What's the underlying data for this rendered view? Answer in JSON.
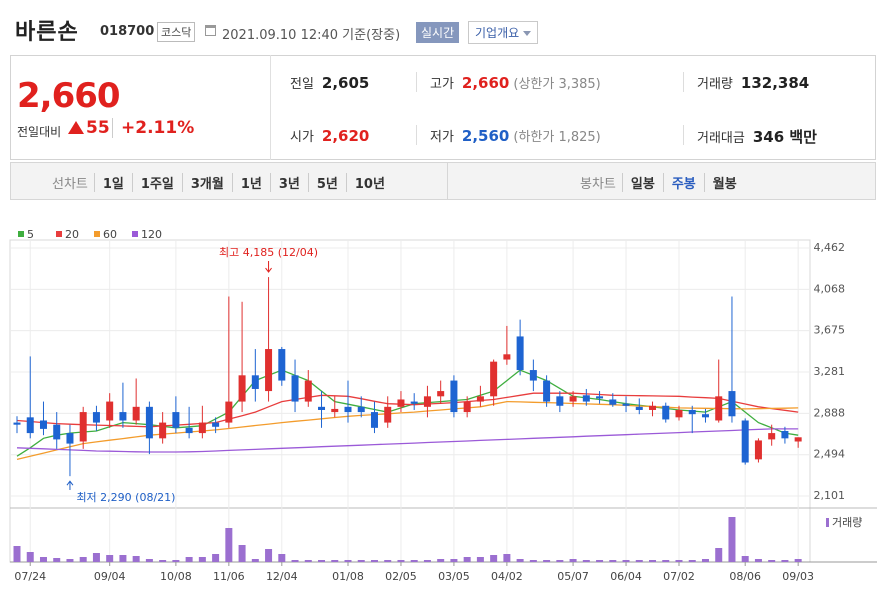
{
  "header": {
    "name": "바른손",
    "code": "018700",
    "market": "코스닥",
    "timestamp": "2021.09.10 12:40 기준(장중)",
    "realtime": "실시간",
    "overview": "기업개요"
  },
  "summary": {
    "price": "2,660",
    "change_label": "전일대비",
    "change": "55",
    "change_pct": "+2.11%",
    "items": [
      {
        "label": "전일",
        "value": "2,605",
        "color": "#222222"
      },
      {
        "label": "고가",
        "value": "2,660",
        "note": "(상한가 3,385)",
        "color": "#e0211e"
      },
      {
        "label": "거래량",
        "value": "132,384",
        "color": "#222222"
      },
      {
        "label": "시가",
        "value": "2,620",
        "color": "#e0211e"
      },
      {
        "label": "저가",
        "value": "2,560",
        "note": "(하한가 1,825)",
        "color": "#1f5fc6"
      },
      {
        "label": "거래대금",
        "value": "346 백만",
        "color": "#222222"
      }
    ]
  },
  "tabs": {
    "line_label": "선차트",
    "line": [
      "1일",
      "1주일",
      "3개월",
      "1년",
      "3년",
      "5년",
      "10년"
    ],
    "candle_label": "봉차트",
    "candle": [
      "일봉",
      "주봉",
      "월봉"
    ],
    "active": "주봉"
  },
  "chart": {
    "type": "candlestick",
    "up_color": "#e0302f",
    "down_color": "#1e64d2",
    "ylim": [
      2006,
      4538
    ],
    "yticks": [
      {
        "value": 4462,
        "label": "4,462"
      },
      {
        "value": 4068,
        "label": "4,068"
      },
      {
        "value": 3675,
        "label": "3,675"
      },
      {
        "value": 3281,
        "label": "3,281"
      },
      {
        "value": 2888,
        "label": "2,888"
      },
      {
        "value": 2494,
        "label": "2,494"
      },
      {
        "value": 2101,
        "label": "2,101"
      }
    ],
    "grid": true,
    "categories": [
      null,
      "07/24",
      null,
      null,
      null,
      null,
      null,
      "09/04",
      null,
      null,
      null,
      null,
      "10/08",
      null,
      null,
      null,
      "11/06",
      null,
      null,
      null,
      "12/04",
      null,
      null,
      null,
      null,
      "01/08",
      null,
      null,
      null,
      "02/05",
      null,
      null,
      null,
      "03/05",
      null,
      null,
      null,
      "04/02",
      null,
      null,
      null,
      null,
      "05/07",
      null,
      null,
      null,
      "06/04",
      null,
      null,
      null,
      "07/02",
      null,
      null,
      null,
      null,
      "08/06",
      null,
      null,
      null,
      "09/03"
    ],
    "open": [
      2800,
      2850,
      2820,
      2780,
      2700,
      2620,
      2900,
      2820,
      2900,
      2820,
      2950,
      2650,
      2900,
      2750,
      2700,
      2800,
      2800,
      3000,
      3250,
      3100,
      3500,
      3250,
      3000,
      2950,
      2900,
      2950,
      2950,
      2900,
      2800,
      2950,
      3000,
      2950,
      3050,
      3200,
      2900,
      3000,
      3050,
      3400,
      3620,
      3300,
      3200,
      3050,
      3000,
      3060,
      3050,
      3020,
      2980,
      2950,
      2920,
      2960,
      2850,
      2920,
      2880,
      2820,
      3100,
      2820,
      2450,
      2640,
      2720,
      2620
    ],
    "high": [
      2860,
      3430,
      3000,
      2900,
      2780,
      2950,
      2960,
      3080,
      3180,
      3220,
      3000,
      2900,
      3050,
      2950,
      2960,
      2850,
      4000,
      3950,
      3500,
      4185,
      3520,
      3400,
      3300,
      3100,
      3050,
      3200,
      3050,
      3000,
      3050,
      3100,
      3080,
      3150,
      3200,
      3250,
      3050,
      3150,
      3400,
      3720,
      3780,
      3400,
      3250,
      3100,
      3100,
      3120,
      3100,
      3080,
      3050,
      3030,
      3000,
      2990,
      2960,
      2960,
      2930,
      3400,
      4000,
      2840,
      2650,
      2780,
      2760,
      2660
    ],
    "low": [
      2700,
      2650,
      2680,
      2550,
      2290,
      2550,
      2720,
      2750,
      2750,
      2780,
      2500,
      2600,
      2700,
      2650,
      2650,
      2700,
      2750,
      2900,
      3000,
      3000,
      3150,
      2900,
      2950,
      2750,
      2850,
      2800,
      2850,
      2700,
      2750,
      2900,
      2920,
      2850,
      2980,
      2850,
      2850,
      2950,
      2960,
      3350,
      3250,
      3100,
      2950,
      2900,
      2950,
      2960,
      2980,
      2950,
      2900,
      2880,
      2860,
      2800,
      2820,
      2700,
      2800,
      2800,
      2800,
      2400,
      2420,
      2580,
      2600,
      2560
    ],
    "close": [
      2780,
      2700,
      2740,
      2640,
      2600,
      2900,
      2800,
      3000,
      2820,
      2950,
      2650,
      2800,
      2750,
      2700,
      2800,
      2760,
      3000,
      3250,
      3120,
      3500,
      3200,
      3000,
      3200,
      2920,
      2930,
      2900,
      2900,
      2750,
      2950,
      3020,
      2980,
      3050,
      3100,
      2900,
      3000,
      3050,
      3380,
      3450,
      3300,
      3200,
      3000,
      2960,
      3050,
      3000,
      3030,
      2970,
      2960,
      2920,
      2960,
      2830,
      2920,
      2880,
      2850,
      3050,
      2860,
      2420,
      2630,
      2700,
      2650,
      2660
    ],
    "moving_averages": [
      {
        "name": "5",
        "color": "#3fae3f",
        "values": [
          2480,
          2560,
          2650,
          2680,
          2700,
          2710,
          2720,
          2760,
          2800,
          2790,
          2780,
          2765,
          2750,
          2760,
          2770,
          2835,
          2900,
          3050,
          3200,
          3250,
          3300,
          3250,
          3200,
          3100,
          3000,
          2975,
          2950,
          2925,
          2900,
          2940,
          2980,
          2990,
          3000,
          3010,
          3020,
          3060,
          3100,
          3200,
          3300,
          3250,
          3200,
          3125,
          3050,
          3035,
          3020,
          3000,
          2980,
          2965,
          2950,
          2935,
          2920,
          2910,
          2900,
          2950,
          3000,
          2900,
          2800,
          2750,
          2700,
          2680
        ]
      },
      {
        "name": "20",
        "color": "#e83d3d",
        "values": [
          2820,
          2810,
          2800,
          2790,
          2785,
          2780,
          2776,
          2772,
          2768,
          2764,
          2760,
          2768,
          2776,
          2784,
          2792,
          2800,
          2833,
          2866,
          2900,
          2950,
          3000,
          3020,
          3040,
          3060,
          3055,
          3050,
          3027,
          3003,
          2980,
          2975,
          2970,
          2977,
          2983,
          2990,
          3000,
          3010,
          3020,
          3040,
          3060,
          3080,
          3080,
          3080,
          3080,
          3073,
          3067,
          3060,
          3058,
          3056,
          3054,
          3052,
          3050,
          3043,
          3037,
          3030,
          3003,
          2977,
          2950,
          2933,
          2917,
          2900
        ]
      },
      {
        "name": "60",
        "color": "#f39c2c",
        "values": [
          2450,
          2480,
          2510,
          2540,
          2570,
          2600,
          2616,
          2632,
          2648,
          2664,
          2680,
          2690,
          2700,
          2710,
          2720,
          2730,
          2744,
          2758,
          2772,
          2786,
          2800,
          2812,
          2824,
          2836,
          2848,
          2860,
          2868,
          2876,
          2884,
          2892,
          2900,
          2910,
          2920,
          2930,
          2940,
          2950,
          2975,
          3000,
          2997,
          2993,
          2990,
          2986,
          2982,
          2978,
          2974,
          2970,
          2964,
          2958,
          2952,
          2946,
          2940,
          2938,
          2936,
          2934,
          2932,
          2930,
          2932,
          2935,
          2937,
          2940
        ]
      },
      {
        "name": "120",
        "color": "#9b5ad8",
        "values": [
          2560,
          2555,
          2550,
          2545,
          2540,
          2535,
          2530,
          2528,
          2525,
          2522,
          2520,
          2520,
          2520,
          2522,
          2525,
          2530,
          2535,
          2540,
          2545,
          2550,
          2555,
          2560,
          2565,
          2570,
          2575,
          2580,
          2585,
          2590,
          2595,
          2600,
          2605,
          2610,
          2615,
          2620,
          2625,
          2630,
          2635,
          2640,
          2645,
          2650,
          2655,
          2660,
          2665,
          2670,
          2675,
          2680,
          2685,
          2690,
          2695,
          2700,
          2705,
          2710,
          2715,
          2720,
          2725,
          2730,
          2735,
          2740,
          2740,
          2740
        ]
      }
    ],
    "volume_label": "거래량",
    "volume_color": "#9b6fd0",
    "volume": [
      1600,
      1000,
      500,
      400,
      300,
      500,
      900,
      700,
      700,
      600,
      300,
      200,
      200,
      500,
      500,
      800,
      3400,
      1700,
      300,
      1300,
      800,
      200,
      200,
      200,
      200,
      200,
      200,
      200,
      200,
      200,
      200,
      200,
      300,
      300,
      500,
      500,
      700,
      800,
      300,
      200,
      200,
      200,
      300,
      200,
      200,
      200,
      200,
      200,
      200,
      200,
      200,
      200,
      300,
      1400,
      4500,
      600,
      300,
      200,
      200,
      300
    ],
    "annotations": {
      "high": "최고 4,185 (12/04)",
      "low": "최저 2,290 (08/21)"
    }
  }
}
